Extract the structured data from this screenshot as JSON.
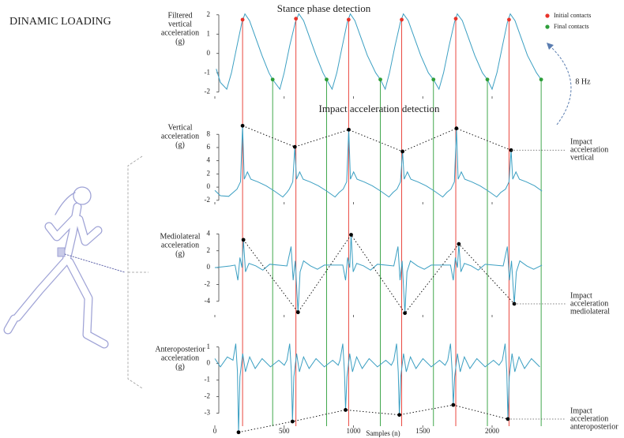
{
  "heading": "DINAMIC LOADING",
  "rate_label": "8 Hz",
  "chart_data": [
    {
      "type": "line",
      "title": "Stance phase detection",
      "ylabel": [
        "Filtered",
        "vertical",
        "acceleration",
        "(g)"
      ],
      "xlim": [
        0,
        2380
      ],
      "ylim": [
        -2.3,
        2.4
      ],
      "yticks": [
        -2,
        -1,
        0,
        1,
        2
      ],
      "series": [
        {
          "color": "#3b9fc2",
          "x": [
            10,
            40,
            86,
            120,
            160,
            195,
            217,
            250,
            290,
            340,
            390,
            417,
            469,
            500,
            540,
            580,
            606,
            640,
            680,
            730,
            780,
            806,
            846,
            880,
            920,
            955,
            977,
            1010,
            1050,
            1100,
            1160,
            1194,
            1229,
            1260,
            1300,
            1338,
            1360,
            1395,
            1435,
            1485,
            1540,
            1577,
            1617,
            1650,
            1690,
            1728,
            1749,
            1785,
            1825,
            1875,
            1930,
            1966,
            2000,
            2035,
            2075,
            2110,
            2131,
            2165,
            2205,
            2255,
            2320,
            2354
          ],
          "values": [
            -0.8,
            -1.5,
            -1.85,
            -1.0,
            0.4,
            1.6,
            2.05,
            1.7,
            0.9,
            -0.1,
            -1.0,
            -1.35,
            -1.85,
            -1.0,
            0.4,
            1.6,
            2.05,
            1.7,
            0.9,
            -0.1,
            -1.0,
            -1.35,
            -1.85,
            -1.0,
            0.4,
            1.6,
            2.05,
            1.7,
            0.9,
            -0.1,
            -1.0,
            -1.35,
            -1.85,
            -1.0,
            0.4,
            1.6,
            2.05,
            1.7,
            0.9,
            -0.1,
            -1.0,
            -1.35,
            -1.85,
            -1.0,
            0.4,
            1.6,
            2.05,
            1.7,
            0.9,
            -0.1,
            -1.0,
            -1.35,
            -1.85,
            -1.0,
            0.4,
            1.6,
            2.05,
            1.7,
            0.9,
            -0.1,
            -1.0,
            -1.35
          ]
        }
      ],
      "markers": [
        {
          "name": "Initial contacts",
          "color": "#e8332a",
          "x": [
            200,
            585,
            965,
            1348,
            1738,
            2122
          ],
          "values": [
            1.75,
            1.8,
            1.75,
            1.75,
            1.8,
            1.75
          ]
        },
        {
          "name": "Final contacts",
          "color": "#2e9e3a",
          "x": [
            417,
            806,
            1194,
            1577,
            1966,
            2354
          ],
          "values": [
            -1.35,
            -1.35,
            -1.35,
            -1.35,
            -1.35,
            -1.35
          ]
        }
      ]
    },
    {
      "type": "line",
      "title": "Impact acceleration detection",
      "ylabel": [
        "Vertical",
        "acceleration",
        "(g)"
      ],
      "xlim": [
        0,
        2380
      ],
      "ylim": [
        -2.5,
        9.7
      ],
      "yticks": [
        -2,
        0,
        2,
        4,
        6,
        8
      ],
      "series": [
        {
          "color": "#3b9fc2",
          "x": [
            0,
            40,
            100,
            160,
            185,
            200,
            212,
            235,
            260,
            310,
            370,
            430,
            490,
            520,
            537,
            562,
            577,
            589,
            612,
            637,
            687,
            747,
            807,
            867,
            897,
            926,
            951,
            966,
            978,
            1001,
            1026,
            1076,
            1136,
            1196,
            1256,
            1286,
            1314,
            1339,
            1354,
            1366,
            1389,
            1414,
            1464,
            1524,
            1584,
            1644,
            1674,
            1703,
            1728,
            1743,
            1755,
            1778,
            1803,
            1853,
            1913,
            1973,
            2033,
            2063,
            2097,
            2122,
            2137,
            2149,
            2172,
            2197,
            2247,
            2307,
            2360
          ],
          "values": [
            -0.5,
            -1.3,
            -1.4,
            -0.3,
            0.8,
            9.3,
            1.2,
            2.3,
            1.2,
            0.8,
            0.2,
            -0.6,
            -1.5,
            -0.8,
            -0.3,
            0.8,
            6.1,
            1.2,
            2.3,
            1.2,
            0.8,
            0.2,
            -0.6,
            -1.5,
            -0.8,
            -0.3,
            0.8,
            8.7,
            1.2,
            2.3,
            1.2,
            0.8,
            0.2,
            -0.6,
            -1.5,
            -0.8,
            -0.3,
            0.8,
            5.4,
            1.2,
            2.3,
            1.2,
            0.8,
            0.2,
            -0.6,
            -1.5,
            -0.8,
            -0.3,
            0.8,
            8.9,
            1.2,
            2.3,
            1.2,
            0.8,
            0.2,
            -0.6,
            -1.5,
            -0.8,
            -0.3,
            0.8,
            5.6,
            1.2,
            2.3,
            1.2,
            0.8,
            0.2,
            -0.6
          ]
        }
      ],
      "impacts": {
        "color": "#000000",
        "x": [
          200,
          577,
          966,
          1354,
          1743,
          2137
        ],
        "values": [
          9.3,
          6.1,
          8.7,
          5.4,
          8.9,
          5.6
        ],
        "label": [
          "Impact",
          "acceleration",
          "vertical"
        ]
      }
    },
    {
      "type": "line",
      "ylabel": [
        "Mediolateral",
        "acceleration",
        "(g)"
      ],
      "xlim": [
        0,
        2380
      ],
      "ylim": [
        -5.8,
        4.6
      ],
      "yticks": [
        -4,
        -2,
        0,
        2,
        4
      ],
      "series": [
        {
          "color": "#3b9fc2",
          "x": [
            0,
            60,
            110,
            146,
            166,
            181,
            196,
            206,
            221,
            246,
            296,
            346,
            396,
            520,
            550,
            565,
            580,
            600,
            615,
            640,
            690,
            740,
            790,
            923,
            943,
            958,
            973,
            983,
            998,
            1023,
            1073,
            1123,
            1173,
            1291,
            1321,
            1336,
            1351,
            1371,
            1386,
            1411,
            1461,
            1511,
            1561,
            1700,
            1720,
            1735,
            1750,
            1760,
            1775,
            1800,
            1850,
            1900,
            1950,
            2080,
            2110,
            2125,
            2140,
            2160,
            2175,
            2200,
            2250,
            2300,
            2360
          ],
          "values": [
            0,
            0.1,
            0.2,
            0.3,
            -1.5,
            1.2,
            0,
            3.3,
            -0.5,
            0.5,
            0.2,
            -0.3,
            0.4,
            0.2,
            2.5,
            -1.5,
            0.8,
            -5.3,
            -0.5,
            0.8,
            0.2,
            -0.2,
            0.3,
            0.3,
            -1.5,
            1.2,
            0,
            3.9,
            -0.5,
            0.5,
            0.2,
            -0.3,
            0.4,
            0.2,
            2.5,
            -1.5,
            0.8,
            -5.4,
            -0.5,
            0.8,
            0.2,
            -0.2,
            0.3,
            0.3,
            -1.5,
            1.2,
            0,
            2.8,
            -0.5,
            0.5,
            0.2,
            -0.3,
            0.4,
            0.2,
            2.5,
            -1.5,
            0.8,
            -4.3,
            -0.5,
            0.8,
            0.2,
            -0.2,
            0.3
          ]
        }
      ],
      "impacts": {
        "color": "#000000",
        "x": [
          206,
          600,
          983,
          1371,
          1760,
          2160
        ],
        "values": [
          3.3,
          -5.3,
          3.9,
          -5.4,
          2.8,
          -4.3
        ],
        "label": [
          "Impact",
          "acceleration",
          "mediolateral"
        ]
      }
    },
    {
      "type": "line",
      "ylabel": [
        "Anteroposterior",
        "acceleration",
        "(g)"
      ],
      "xlabel": "Samples (n)",
      "xlim": [
        0,
        2380
      ],
      "xticks": [
        0,
        500,
        1000,
        1500,
        2000
      ],
      "ylim": [
        -4.4,
        1.7
      ],
      "yticks": [
        -3,
        -2,
        -1,
        0,
        1
      ],
      "series": [
        {
          "color": "#3b9fc2",
          "x": [
            0,
            40,
            90,
            131,
            151,
            163,
            171,
            181,
            201,
            221,
            251,
            291,
            341,
            401,
            461,
            501,
            520,
            540,
            552,
            560,
            570,
            590,
            610,
            640,
            680,
            730,
            790,
            850,
            890,
            903,
            923,
            935,
            943,
            953,
            973,
            993,
            1023,
            1063,
            1113,
            1173,
            1233,
            1273,
            1291,
            1311,
            1323,
            1331,
            1341,
            1361,
            1381,
            1411,
            1451,
            1501,
            1561,
            1621,
            1661,
            1680,
            1700,
            1712,
            1720,
            1730,
            1750,
            1770,
            1800,
            1840,
            1890,
            1950,
            2010,
            2050,
            2074,
            2094,
            2106,
            2114,
            2124,
            2144,
            2164,
            2194,
            2234,
            2284,
            2344
          ],
          "values": [
            0.3,
            -0.2,
            0.4,
            0.2,
            1.2,
            -0.5,
            -4.15,
            -0.8,
            0.6,
            -0.5,
            0.4,
            -0.3,
            0.3,
            -0.2,
            0.2,
            -0.1,
            0.2,
            1.2,
            -0.5,
            -3.5,
            -0.8,
            0.6,
            -0.5,
            0.4,
            -0.3,
            0.3,
            -0.2,
            0.2,
            -0.1,
            0.2,
            1.2,
            -0.5,
            -2.8,
            -0.8,
            0.6,
            -0.5,
            0.4,
            -0.3,
            0.3,
            -0.2,
            0.2,
            -0.1,
            0.2,
            1.2,
            -0.5,
            -3.1,
            -0.8,
            0.6,
            -0.5,
            0.4,
            -0.3,
            0.3,
            -0.2,
            0.2,
            -0.1,
            0.2,
            1.2,
            -0.5,
            -2.5,
            -0.8,
            0.6,
            -0.5,
            0.4,
            -0.3,
            0.3,
            -0.2,
            0.2,
            -0.1,
            0.2,
            1.2,
            -0.5,
            -3.35,
            -0.8,
            0.6,
            -0.5,
            0.4,
            -0.3,
            0.3,
            -0.2
          ]
        }
      ],
      "impacts": {
        "color": "#000000",
        "x": [
          171,
          560,
          943,
          1331,
          1720,
          2114
        ],
        "values": [
          -4.15,
          -3.5,
          -2.8,
          -3.1,
          -2.5,
          -3.35
        ],
        "label": [
          "Impact",
          "acceleration",
          "anteroposterior"
        ]
      }
    }
  ]
}
